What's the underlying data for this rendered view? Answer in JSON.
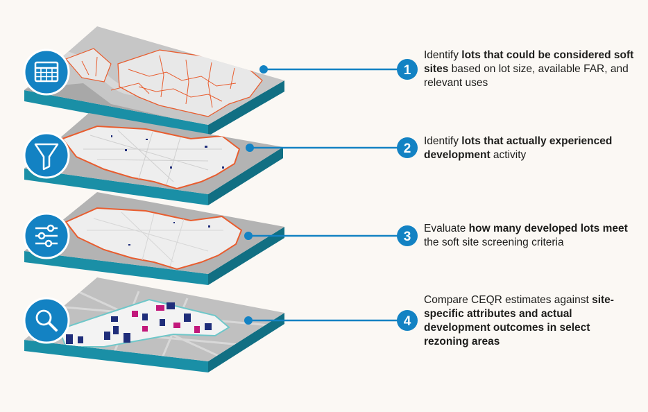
{
  "colors": {
    "accent": "#1382c3",
    "slab_side": "#1a8fa6",
    "slab_front": "#116f83",
    "map_land": "#e3e3e3",
    "map_gray": "#c2c2c2",
    "water": "#a9a9a9",
    "boundary": "#e85d2f",
    "lot_navy": "#1f2d7a",
    "lot_magenta": "#c2187b"
  },
  "steps": [
    {
      "number": "1",
      "icon": "table-icon",
      "parts": [
        {
          "text": "Identify ",
          "bold": false
        },
        {
          "text": "lots that could be considered soft sites",
          "bold": true
        },
        {
          "text": " based on lot size, available FAR, and relevant uses",
          "bold": false
        }
      ]
    },
    {
      "number": "2",
      "icon": "filter-icon",
      "parts": [
        {
          "text": "Identify ",
          "bold": false
        },
        {
          "text": "lots that actually experienced development",
          "bold": true
        },
        {
          "text": " activity",
          "bold": false
        }
      ]
    },
    {
      "number": "3",
      "icon": "sliders-icon",
      "parts": [
        {
          "text": "Evaluate ",
          "bold": false
        },
        {
          "text": "how many developed lots meet",
          "bold": true
        },
        {
          "text": " the soft site screening criteria",
          "bold": false
        }
      ]
    },
    {
      "number": "4",
      "icon": "magnifier-icon",
      "parts": [
        {
          "text": "Compare CEQR estimates against ",
          "bold": false
        },
        {
          "text": "site-specific attributes and actual development outcomes in select rezoning areas",
          "bold": true
        }
      ]
    }
  ]
}
